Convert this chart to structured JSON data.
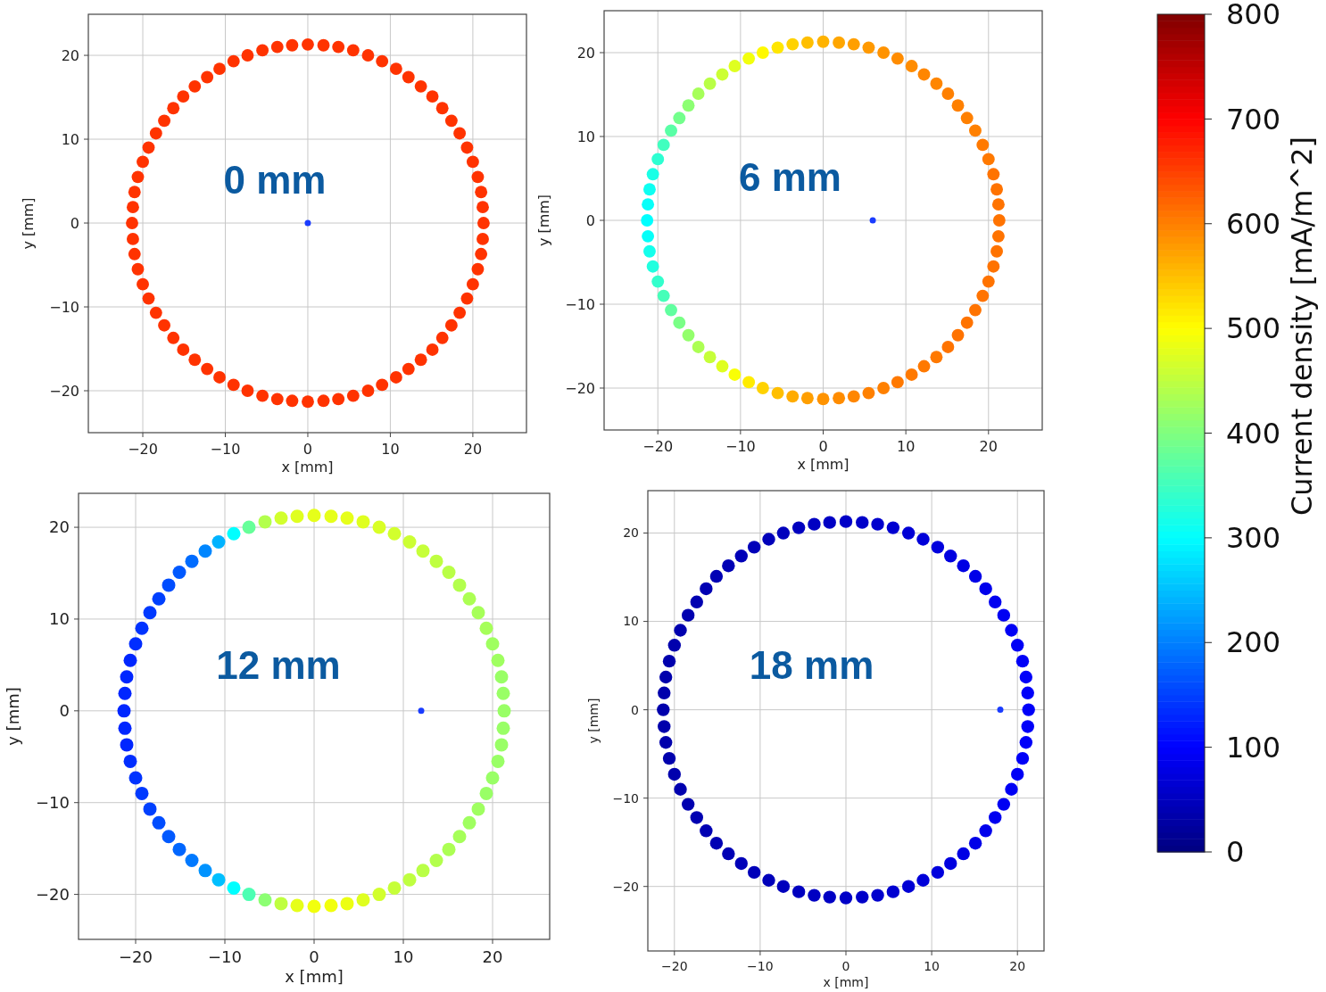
{
  "chart_data": [
    {
      "type": "scatter",
      "xlabel": "x [mm]",
      "ylabel": "y [mm]",
      "xlim": [
        -26.6,
        26.5
      ],
      "ylim": [
        -25,
        24.9
      ],
      "xticks": [
        -20,
        -10,
        0,
        10,
        20
      ],
      "yticks": [
        -20,
        -10,
        0,
        10,
        20
      ],
      "grid": true,
      "clim": [
        0,
        800
      ],
      "cticks": [
        0,
        100,
        200,
        300,
        400,
        500,
        600,
        700,
        800
      ],
      "clabel": "Current density [mA/m^2]",
      "annotations": [
        "0 mm"
      ],
      "series": [
        {
          "x": [
            21.3,
            21.2,
            21.0,
            20.6,
            20.0,
            19.3,
            18.4,
            17.4,
            16.3,
            15.1,
            13.7,
            12.2,
            10.7,
            9.0,
            7.3,
            5.5,
            3.7,
            1.9,
            0,
            -1.9,
            -3.7,
            -5.5,
            -7.3,
            -9.0,
            -10.7,
            -12.2,
            -13.7,
            -15.1,
            -16.3,
            -17.4,
            -18.4,
            -19.3,
            -20.0,
            -20.6,
            -21.0,
            -21.2,
            -21.3,
            -21.2,
            -21.0,
            -20.6,
            -20.0,
            -19.3,
            -18.4,
            -17.4,
            -16.3,
            -15.1,
            -13.7,
            -12.2,
            -10.7,
            -9.0,
            -7.3,
            -5.5,
            -3.7,
            -1.9,
            0,
            1.9,
            3.7,
            5.5,
            7.3,
            9.0,
            10.7,
            12.2,
            13.7,
            15.1,
            16.3,
            17.4,
            18.4,
            19.3,
            20.0,
            20.6,
            21.0,
            21.2
          ],
          "values": [
            0,
            1.9,
            3.7,
            5.5,
            7.3,
            9.0,
            10.7,
            12.2,
            13.7,
            15.1,
            16.3,
            17.4,
            18.4,
            19.3,
            20.0,
            20.6,
            21.0,
            21.2,
            21.3,
            21.2,
            21.0,
            20.6,
            20.0,
            19.3,
            18.4,
            17.4,
            16.3,
            15.1,
            13.7,
            12.2,
            10.7,
            9.0,
            7.3,
            5.5,
            3.7,
            1.9,
            0,
            -1.9,
            -3.7,
            -5.5,
            -7.3,
            -9.0,
            -10.7,
            -12.2,
            -13.7,
            -15.1,
            -16.3,
            -17.4,
            -18.4,
            -19.3,
            -20.0,
            -20.6,
            -21.0,
            -21.2,
            -21.3,
            -21.2,
            -21.0,
            -20.6,
            -20.0,
            -19.3,
            -18.4,
            -17.4,
            -16.3,
            -15.1,
            -13.7,
            -12.2,
            -10.7,
            -9.0,
            -7.3,
            -5.5,
            -3.7,
            -1.9
          ],
          "cvalues": [
            660,
            660,
            660,
            660,
            660,
            660,
            660,
            660,
            660,
            660,
            660,
            660,
            660,
            660,
            660,
            660,
            660,
            660,
            660,
            660,
            660,
            660,
            660,
            660,
            660,
            660,
            660,
            660,
            660,
            660,
            660,
            660,
            660,
            660,
            660,
            660,
            660,
            660,
            660,
            660,
            660,
            660,
            660,
            660,
            660,
            660,
            660,
            660,
            660,
            660,
            660,
            660,
            660,
            660,
            660,
            660,
            660,
            660,
            660,
            660,
            660,
            660,
            660,
            660,
            660,
            660,
            660,
            660,
            660,
            660,
            660,
            660
          ]
        },
        {
          "x": [
            0
          ],
          "values": [
            0
          ],
          "color": "#1a3cff"
        }
      ]
    },
    {
      "type": "scatter",
      "xlabel": "x [mm]",
      "ylabel": "y [mm]",
      "xlim": [
        -26.5,
        26.5
      ],
      "ylim": [
        -25,
        25
      ],
      "xticks": [
        -20,
        -10,
        0,
        10,
        20
      ],
      "yticks": [
        -20,
        -10,
        0,
        10,
        20
      ],
      "grid": true,
      "annotations": [
        "6 mm"
      ],
      "series": [
        {
          "x": [
            21.3,
            21.2,
            21.0,
            20.6,
            20.0,
            19.3,
            18.4,
            17.4,
            16.3,
            15.1,
            13.7,
            12.2,
            10.7,
            9.0,
            7.3,
            5.5,
            3.7,
            1.9,
            0,
            -1.9,
            -3.7,
            -5.5,
            -7.3,
            -9.0,
            -10.7,
            -12.2,
            -13.7,
            -15.1,
            -16.3,
            -17.4,
            -18.4,
            -19.3,
            -20.0,
            -20.6,
            -21.0,
            -21.2,
            -21.3,
            -21.2,
            -21.0,
            -20.6,
            -20.0,
            -19.3,
            -18.4,
            -17.4,
            -16.3,
            -15.1,
            -13.7,
            -12.2,
            -10.7,
            -9.0,
            -7.3,
            -5.5,
            -3.7,
            -1.9,
            0,
            1.9,
            3.7,
            5.5,
            7.3,
            9.0,
            10.7,
            12.2,
            13.7,
            15.1,
            16.3,
            17.4,
            18.4,
            19.3,
            20.0,
            20.6,
            21.0,
            21.2
          ],
          "values": [
            0,
            1.9,
            3.7,
            5.5,
            7.3,
            9.0,
            10.7,
            12.2,
            13.7,
            15.1,
            16.3,
            17.4,
            18.4,
            19.3,
            20.0,
            20.6,
            21.0,
            21.2,
            21.3,
            21.2,
            21.0,
            20.6,
            20.0,
            19.3,
            18.4,
            17.4,
            16.3,
            15.1,
            13.7,
            12.2,
            10.7,
            9.0,
            7.3,
            5.5,
            3.7,
            1.9,
            0,
            -1.9,
            -3.7,
            -5.5,
            -7.3,
            -9.0,
            -10.7,
            -12.2,
            -13.7,
            -15.1,
            -16.3,
            -17.4,
            -18.4,
            -19.3,
            -20.0,
            -20.6,
            -21.0,
            -21.2,
            -21.3,
            -21.2,
            -21.0,
            -20.6,
            -20.0,
            -19.3,
            -18.4,
            -17.4,
            -16.3,
            -15.1,
            -13.7,
            -12.2,
            -10.7,
            -9.0,
            -7.3,
            -5.5,
            -3.7,
            -1.9
          ],
          "colors": [
            "#ff7300",
            "#ff7300",
            "#ff7300",
            "#ff7300",
            "#ff7900",
            "#ff7900",
            "#ff8000",
            "#ff8000",
            "#ff8000",
            "#ff8000",
            "#ff8600",
            "#ff8600",
            "#ff8c00",
            "#ff8c00",
            "#ff9300",
            "#ff9900",
            "#ff9f00",
            "#ffa600",
            "#ffb300",
            "#ffbf00",
            "#ffd200",
            "#ffe600",
            "#fff900",
            "#f2ff0d",
            "#dfff20",
            "#ccff33",
            "#b9ff46",
            "#a6ff59",
            "#8cff73",
            "#73ff8c",
            "#59ffa6",
            "#40ffbf",
            "#2dffd2",
            "#1affe6",
            "#0dfff2",
            "#06fff9",
            "#00ffff",
            "#06fff9",
            "#13ffec",
            "#20ffdf",
            "#33ffcc",
            "#46ffb9",
            "#60ff9f",
            "#79ff86",
            "#93ff6c",
            "#acff53",
            "#c6ff39",
            "#dfff20",
            "#f9ff06",
            "#ffec00",
            "#ffd200",
            "#ffbf00",
            "#ffac00",
            "#ff9f00",
            "#ff9300",
            "#ff8c00",
            "#ff8600",
            "#ff8000",
            "#ff8000",
            "#ff7900",
            "#ff7900",
            "#ff7900",
            "#ff7900",
            "#ff7300",
            "#ff7300",
            "#ff7300",
            "#ff7300",
            "#ff7300",
            "#ff7300",
            "#ff7300",
            "#ff7300",
            "#ff7300"
          ]
        },
        {
          "x": [
            6
          ],
          "values": [
            0
          ],
          "color": "#1a3cff"
        }
      ]
    },
    {
      "type": "scatter",
      "xlabel": "x [mm]",
      "ylabel": "y [mm]",
      "xlim": [
        -26.4,
        26.4
      ],
      "ylim": [
        -24.9,
        23.7
      ],
      "xticks": [
        -20,
        -10,
        0,
        10,
        20
      ],
      "yticks": [
        -20,
        -10,
        0,
        10,
        20
      ],
      "grid": true,
      "annotations": [
        "12 mm"
      ],
      "series": [
        {
          "x": [
            21.3,
            21.2,
            21.0,
            20.6,
            20.0,
            19.3,
            18.4,
            17.4,
            16.3,
            15.1,
            13.7,
            12.2,
            10.7,
            9.0,
            7.3,
            5.5,
            3.7,
            1.9,
            0,
            -1.9,
            -3.7,
            -5.5,
            -7.3,
            -9.0,
            -10.7,
            -12.2,
            -13.7,
            -15.1,
            -16.3,
            -17.4,
            -18.4,
            -19.3,
            -20.0,
            -20.6,
            -21.0,
            -21.2,
            -21.3,
            -21.2,
            -21.0,
            -20.6,
            -20.0,
            -19.3,
            -18.4,
            -17.4,
            -16.3,
            -15.1,
            -13.7,
            -12.2,
            -10.7,
            -9.0,
            -7.3,
            -5.5,
            -3.7,
            -1.9,
            0,
            1.9,
            3.7,
            5.5,
            7.3,
            9.0,
            10.7,
            12.2,
            13.7,
            15.1,
            16.3,
            17.4,
            18.4,
            19.3,
            20.0,
            20.6,
            21.0,
            21.2
          ],
          "values": [
            0,
            1.9,
            3.7,
            5.5,
            7.3,
            9.0,
            10.7,
            12.2,
            13.7,
            15.1,
            16.3,
            17.4,
            18.4,
            19.3,
            20.0,
            20.6,
            21.0,
            21.2,
            21.3,
            21.2,
            21.0,
            20.6,
            20.0,
            19.3,
            18.4,
            17.4,
            16.3,
            15.1,
            13.7,
            12.2,
            10.7,
            9.0,
            7.3,
            5.5,
            3.7,
            1.9,
            0,
            -1.9,
            -3.7,
            -5.5,
            -7.3,
            -9.0,
            -10.7,
            -12.2,
            -13.7,
            -15.1,
            -16.3,
            -17.4,
            -18.4,
            -19.3,
            -20.0,
            -20.6,
            -21.0,
            -21.2,
            -21.3,
            -21.2,
            -21.0,
            -20.6,
            -20.0,
            -19.3,
            -18.4,
            -17.4,
            -16.3,
            -15.1,
            -13.7,
            -12.2,
            -10.7,
            -9.0,
            -7.3,
            -5.5,
            -3.7,
            -1.9
          ],
          "colors": [
            "#99ff66",
            "#99ff66",
            "#99ff66",
            "#9fff60",
            "#9fff60",
            "#a6ff59",
            "#a6ff59",
            "#acff53",
            "#b3ff4d",
            "#b9ff46",
            "#bfff40",
            "#c6ff39",
            "#ccff33",
            "#d2ff2d",
            "#d9ff26",
            "#dfff20",
            "#e6ff1a",
            "#e6ff1a",
            "#e6ff1a",
            "#dfff20",
            "#d2ff2d",
            "#b3ff4d",
            "#66ff99",
            "#00ffff",
            "#00b3ff",
            "#0086ff",
            "#006cff",
            "#0059ff",
            "#004dff",
            "#0040ff",
            "#0039ff",
            "#0033ff",
            "#002dff",
            "#0026ff",
            "#0026ff",
            "#0026ff",
            "#0026ff",
            "#0026ff",
            "#0026ff",
            "#002dff",
            "#0033ff",
            "#0039ff",
            "#0040ff",
            "#004dff",
            "#0059ff",
            "#0066ff",
            "#0079ff",
            "#0093ff",
            "#00bfff",
            "#00ffff",
            "#4dffb3",
            "#8cff73",
            "#bfff40",
            "#e6ff1a",
            "#f2ff0d",
            "#f2ff0d",
            "#ecff13",
            "#dfff20",
            "#d2ff2d",
            "#c6ff39",
            "#bfff40",
            "#b9ff46",
            "#b3ff4d",
            "#acff53",
            "#a6ff59",
            "#9fff60",
            "#9fff60",
            "#99ff66",
            "#99ff66",
            "#99ff66",
            "#99ff66",
            "#99ff66"
          ]
        },
        {
          "x": [
            12
          ],
          "values": [
            0
          ],
          "color": "#1a3cff"
        }
      ]
    },
    {
      "type": "scatter",
      "xlabel": "x [mm]",
      "ylabel": "y [mm]",
      "xlim": [
        -23.1,
        23.1
      ],
      "ylim": [
        -27.3,
        24.8
      ],
      "xticks": [
        -20,
        -10,
        0,
        10,
        20
      ],
      "yticks": [
        -20,
        -10,
        0,
        10,
        20
      ],
      "grid": true,
      "annotations": [
        "18 mm"
      ],
      "series": [
        {
          "x": [
            21.3,
            21.2,
            21.0,
            20.6,
            20.0,
            19.3,
            18.4,
            17.4,
            16.3,
            15.1,
            13.7,
            12.2,
            10.7,
            9.0,
            7.3,
            5.5,
            3.7,
            1.9,
            0,
            -1.9,
            -3.7,
            -5.5,
            -7.3,
            -9.0,
            -10.7,
            -12.2,
            -13.7,
            -15.1,
            -16.3,
            -17.4,
            -18.4,
            -19.3,
            -20.0,
            -20.6,
            -21.0,
            -21.2,
            -21.3,
            -21.2,
            -21.0,
            -20.6,
            -20.0,
            -19.3,
            -18.4,
            -17.4,
            -16.3,
            -15.1,
            -13.7,
            -12.2,
            -10.7,
            -9.0,
            -7.3,
            -5.5,
            -3.7,
            -1.9,
            0,
            1.9,
            3.7,
            5.5,
            7.3,
            9.0,
            10.7,
            12.2,
            13.7,
            15.1,
            16.3,
            17.4,
            18.4,
            19.3,
            20.0,
            20.6,
            21.0,
            21.2
          ],
          "values": [
            0,
            1.9,
            3.7,
            5.5,
            7.3,
            9.0,
            10.7,
            12.2,
            13.7,
            15.1,
            16.3,
            17.4,
            18.4,
            19.3,
            20.0,
            20.6,
            21.0,
            21.2,
            21.3,
            21.2,
            21.0,
            20.6,
            20.0,
            19.3,
            18.4,
            17.4,
            16.3,
            15.1,
            13.7,
            12.2,
            10.7,
            9.0,
            7.3,
            5.5,
            3.7,
            1.9,
            0,
            -1.9,
            -3.7,
            -5.5,
            -7.3,
            -9.0,
            -10.7,
            -12.2,
            -13.7,
            -15.1,
            -16.3,
            -17.4,
            -18.4,
            -19.3,
            -20.0,
            -20.6,
            -21.0,
            -21.2,
            -21.3,
            -21.2,
            -21.0,
            -20.6,
            -20.0,
            -19.3,
            -18.4,
            -17.4,
            -16.3,
            -15.1,
            -13.7,
            -12.2,
            -10.7,
            -9.0,
            -7.3,
            -5.5,
            -3.7,
            -1.9
          ],
          "colors": [
            "#0000f9",
            "#0000f9",
            "#0000f9",
            "#0000f7",
            "#0000f6",
            "#0000f5",
            "#0000f2",
            "#0000f0",
            "#0000ec",
            "#0000e8",
            "#0000e4",
            "#0000e0",
            "#0000dd",
            "#0000d9",
            "#0000d5",
            "#0000d1",
            "#0000cd",
            "#0000c9",
            "#0000c7",
            "#0000c4",
            "#0000c2",
            "#0000bf",
            "#0000bd",
            "#0000ba",
            "#0000b9",
            "#0000b8",
            "#0000b5",
            "#0000b4",
            "#0000b3",
            "#0000b1",
            "#0000b0",
            "#0000af",
            "#0000ad",
            "#0000ad",
            "#0000ac",
            "#0000ac",
            "#0000ac",
            "#0000ac",
            "#0000ac",
            "#0000ad",
            "#0000ad",
            "#0000af",
            "#0000b0",
            "#0000b1",
            "#0000b3",
            "#0000b4",
            "#0000b5",
            "#0000b8",
            "#0000b9",
            "#0000ba",
            "#0000bd",
            "#0000bf",
            "#0000c2",
            "#0000c4",
            "#0000c7",
            "#0000c9",
            "#0000cd",
            "#0000d1",
            "#0000d5",
            "#0000d9",
            "#0000dd",
            "#0000e0",
            "#0000e4",
            "#0000e8",
            "#0000ec",
            "#0000f0",
            "#0000f2",
            "#0000f5",
            "#0000f6",
            "#0000f7",
            "#0000f9",
            "#0000f9"
          ]
        },
        {
          "x": [
            18
          ],
          "values": [
            0
          ],
          "color": "#1a3cff"
        }
      ]
    }
  ]
}
